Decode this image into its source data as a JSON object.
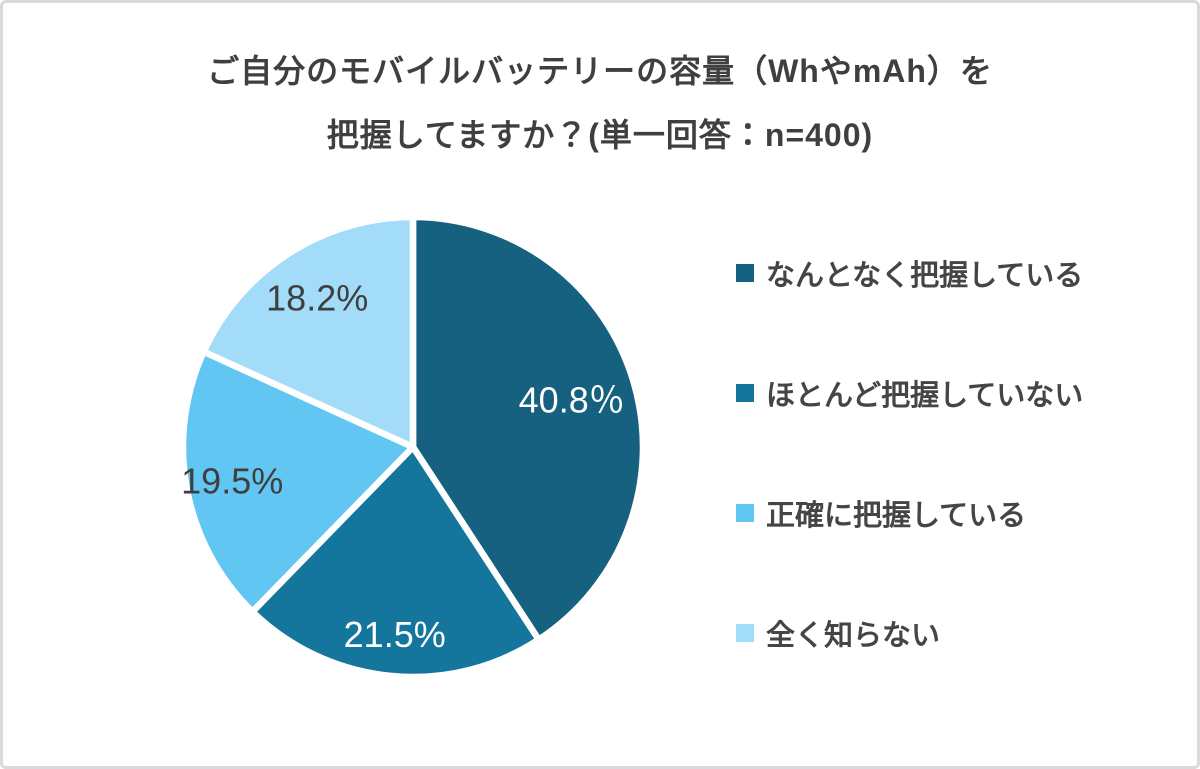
{
  "title": {
    "line1": "ご自分のモバイルバッテリーの容量（WhやmAh）を",
    "line2": "把握してますか？(単一回答：n=400)"
  },
  "chart_data": {
    "type": "pie",
    "title": "ご自分のモバイルバッテリーの容量（WhやmAh）を把握してますか？",
    "subtitle": "単一回答：n=400",
    "sample_size": 400,
    "start_angle_deg": 0,
    "direction": "clockwise",
    "legend_position": "right",
    "categories": [
      "なんとなく把握している",
      "ほとんど把握していない",
      "正確に把握している",
      "全く知らない"
    ],
    "values": [
      40.8,
      21.5,
      19.5,
      18.2
    ],
    "slices": [
      {
        "label": "なんとなく把握している",
        "value": 40.8,
        "display": "40.8％",
        "color": "#15617F",
        "label_color": "#ffffff"
      },
      {
        "label": "ほとんど把握していない",
        "value": 21.5,
        "display": "21.5%",
        "color": "#14759D",
        "label_color": "#ffffff"
      },
      {
        "label": "正確に把握している",
        "value": 19.5,
        "display": "19.5%",
        "color": "#61C7F2",
        "label_color": "#3f3f3f"
      },
      {
        "label": "全く知らない",
        "value": 18.2,
        "display": "18.2%",
        "color": "#A2DCF8",
        "label_color": "#3f3f3f"
      }
    ],
    "colors": {
      "slice_border": "#ffffff"
    }
  }
}
